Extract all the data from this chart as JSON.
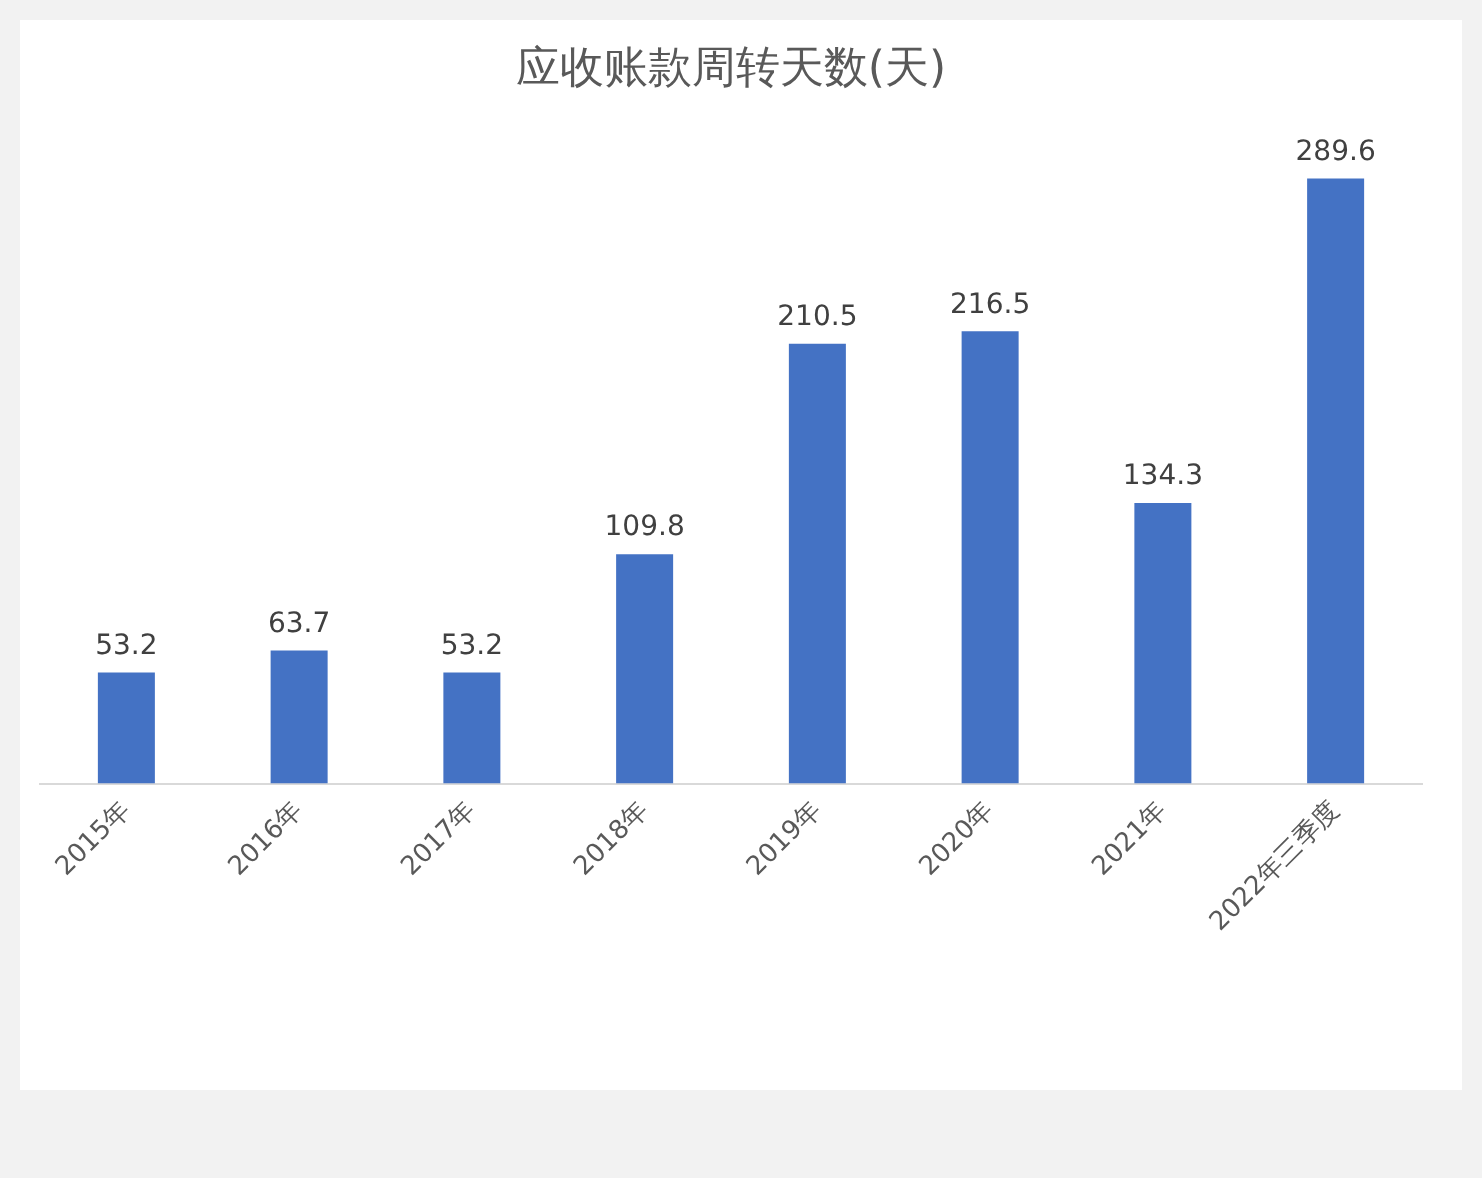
{
  "chart_data": {
    "type": "bar",
    "title": "应收账款周转天数(天)",
    "categories": [
      "2015年",
      "2016年",
      "2017年",
      "2018年",
      "2019年",
      "2020年",
      "2021年",
      "2022年三季度"
    ],
    "values": [
      53.2,
      63.7,
      53.2,
      109.8,
      210.5,
      216.5,
      134.3,
      289.6
    ],
    "color": "#4472c4",
    "data_labels": true,
    "grid": false,
    "legend": false,
    "tick_labels": "x"
  }
}
